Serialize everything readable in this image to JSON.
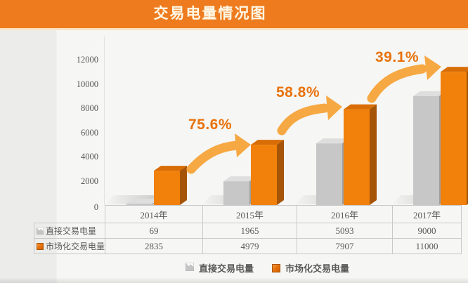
{
  "header": {
    "title": "交易电量情况图"
  },
  "chart_data": {
    "type": "bar",
    "style": "3d-clustered-column",
    "title": "交易电量情况图",
    "categories": [
      "2014年",
      "2015年",
      "2016年",
      "2017年"
    ],
    "series": [
      {
        "name": "直接交易电量",
        "values": [
          69,
          1965,
          5093,
          9000
        ],
        "colors": {
          "front": "#C7C7C7",
          "top": "#DEDEDE",
          "side": "#9F9F9F"
        }
      },
      {
        "name": "市场化交易电量",
        "values": [
          2835,
          4979,
          7907,
          11000
        ],
        "colors": {
          "front": "#F1810B",
          "top": "#D86D06",
          "side": "#A65408"
        }
      }
    ],
    "growth_labels": [
      "75.6%",
      "58.8%",
      "39.1%"
    ],
    "ylim": [
      0,
      12000
    ],
    "yticks": [
      0,
      2000,
      4000,
      6000,
      8000,
      10000,
      12000
    ],
    "grid": false,
    "legend_position": "bottom"
  },
  "table": {
    "rows": [
      {
        "icon": "gray-bar-series-icon",
        "label": "直接交易电量",
        "values": [
          "69",
          "1965",
          "5093",
          "9000"
        ]
      },
      {
        "icon": "orange-bar-series-icon",
        "label": "市场化交易电量",
        "values": [
          "2835",
          "4979",
          "7907",
          "11000"
        ]
      }
    ]
  },
  "legend": {
    "items": [
      {
        "icon": "gray-bar-series-icon",
        "label": "直接交易电量"
      },
      {
        "icon": "orange-bar-series-icon",
        "label": "市场化交易电量"
      }
    ]
  },
  "colors": {
    "header_bg": "#EE7C1F",
    "header_strip": "#F9E2C2",
    "title_text": "#FFF8E6",
    "arrow": "#F6A843",
    "growth_text": "#E8720C",
    "axis_text": "#565656",
    "table_border": "#C9C9C9",
    "table_text": "#595959",
    "shadow": "#8F8F8F"
  }
}
